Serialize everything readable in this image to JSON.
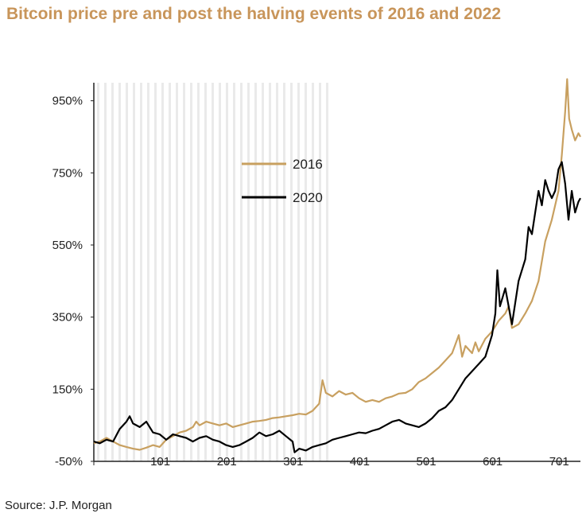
{
  "title": "Bitcoin price pre and post the halving events of 2016 and 2022",
  "source": "Source: J.P. Morgan",
  "colors": {
    "title": "#c8955a",
    "series_2016": "#c8a060",
    "series_2020": "#000000",
    "shading": "#d9d9d9"
  },
  "chart_data": {
    "type": "line",
    "title": "Bitcoin price pre and post the halving events of 2016 and 2022",
    "xlabel": "",
    "ylabel": "",
    "xlim": [
      1,
      733
    ],
    "ylim": [
      -50,
      1000
    ],
    "x_ticks": [
      1,
      101,
      201,
      301,
      401,
      501,
      601,
      701
    ],
    "x_tick_labels": [
      "",
      "101",
      "201",
      "301",
      "401",
      "501",
      "601",
      "701"
    ],
    "y_ticks": [
      -50,
      150,
      350,
      550,
      750,
      950
    ],
    "y_tick_labels": [
      "-50%",
      "150%",
      "350%",
      "550%",
      "750%",
      "950%"
    ],
    "shaded_region": [
      1,
      360
    ],
    "grid": false,
    "legend_position": "upper-center",
    "series": [
      {
        "name": "2016",
        "color": "#c8a060",
        "points": [
          [
            1,
            0
          ],
          [
            10,
            5
          ],
          [
            20,
            15
          ],
          [
            30,
            5
          ],
          [
            40,
            -5
          ],
          [
            50,
            -10
          ],
          [
            60,
            -15
          ],
          [
            70,
            -18
          ],
          [
            80,
            -12
          ],
          [
            90,
            -5
          ],
          [
            100,
            -10
          ],
          [
            110,
            10
          ],
          [
            120,
            20
          ],
          [
            130,
            30
          ],
          [
            140,
            35
          ],
          [
            150,
            45
          ],
          [
            155,
            60
          ],
          [
            160,
            50
          ],
          [
            170,
            60
          ],
          [
            180,
            55
          ],
          [
            190,
            50
          ],
          [
            200,
            55
          ],
          [
            210,
            45
          ],
          [
            220,
            50
          ],
          [
            230,
            55
          ],
          [
            240,
            60
          ],
          [
            250,
            62
          ],
          [
            260,
            65
          ],
          [
            270,
            70
          ],
          [
            280,
            72
          ],
          [
            290,
            75
          ],
          [
            300,
            78
          ],
          [
            310,
            82
          ],
          [
            320,
            80
          ],
          [
            330,
            90
          ],
          [
            340,
            110
          ],
          [
            345,
            175
          ],
          [
            350,
            140
          ],
          [
            360,
            130
          ],
          [
            370,
            145
          ],
          [
            380,
            135
          ],
          [
            390,
            140
          ],
          [
            400,
            125
          ],
          [
            410,
            115
          ],
          [
            420,
            120
          ],
          [
            430,
            115
          ],
          [
            440,
            125
          ],
          [
            450,
            130
          ],
          [
            460,
            138
          ],
          [
            470,
            140
          ],
          [
            480,
            150
          ],
          [
            490,
            170
          ],
          [
            500,
            180
          ],
          [
            510,
            195
          ],
          [
            520,
            210
          ],
          [
            530,
            230
          ],
          [
            540,
            250
          ],
          [
            545,
            275
          ],
          [
            550,
            300
          ],
          [
            555,
            240
          ],
          [
            560,
            270
          ],
          [
            570,
            250
          ],
          [
            575,
            280
          ],
          [
            580,
            255
          ],
          [
            590,
            290
          ],
          [
            600,
            310
          ],
          [
            610,
            340
          ],
          [
            620,
            360
          ],
          [
            625,
            380
          ],
          [
            630,
            320
          ],
          [
            640,
            330
          ],
          [
            650,
            360
          ],
          [
            660,
            395
          ],
          [
            670,
            450
          ],
          [
            680,
            560
          ],
          [
            690,
            620
          ],
          [
            700,
            700
          ],
          [
            705,
            800
          ],
          [
            710,
            920
          ],
          [
            713,
            1010
          ],
          [
            716,
            900
          ],
          [
            720,
            870
          ],
          [
            725,
            840
          ],
          [
            730,
            860
          ],
          [
            733,
            850
          ]
        ]
      },
      {
        "name": "2020",
        "color": "#000000",
        "points": [
          [
            1,
            5
          ],
          [
            10,
            0
          ],
          [
            20,
            10
          ],
          [
            30,
            5
          ],
          [
            40,
            40
          ],
          [
            50,
            60
          ],
          [
            55,
            75
          ],
          [
            60,
            55
          ],
          [
            70,
            45
          ],
          [
            80,
            60
          ],
          [
            90,
            30
          ],
          [
            100,
            25
          ],
          [
            110,
            10
          ],
          [
            120,
            25
          ],
          [
            130,
            20
          ],
          [
            140,
            15
          ],
          [
            150,
            5
          ],
          [
            160,
            15
          ],
          [
            170,
            20
          ],
          [
            180,
            10
          ],
          [
            190,
            5
          ],
          [
            200,
            -5
          ],
          [
            210,
            -10
          ],
          [
            220,
            -5
          ],
          [
            230,
            5
          ],
          [
            240,
            15
          ],
          [
            250,
            30
          ],
          [
            260,
            20
          ],
          [
            270,
            25
          ],
          [
            280,
            35
          ],
          [
            290,
            20
          ],
          [
            300,
            5
          ],
          [
            303,
            -25
          ],
          [
            310,
            -15
          ],
          [
            320,
            -20
          ],
          [
            330,
            -10
          ],
          [
            340,
            -5
          ],
          [
            350,
            0
          ],
          [
            360,
            10
          ],
          [
            370,
            15
          ],
          [
            380,
            20
          ],
          [
            390,
            25
          ],
          [
            400,
            30
          ],
          [
            410,
            28
          ],
          [
            420,
            35
          ],
          [
            430,
            40
          ],
          [
            440,
            50
          ],
          [
            450,
            60
          ],
          [
            460,
            65
          ],
          [
            470,
            55
          ],
          [
            480,
            50
          ],
          [
            490,
            45
          ],
          [
            500,
            55
          ],
          [
            510,
            70
          ],
          [
            520,
            90
          ],
          [
            530,
            100
          ],
          [
            540,
            120
          ],
          [
            550,
            150
          ],
          [
            560,
            180
          ],
          [
            570,
            200
          ],
          [
            580,
            220
          ],
          [
            590,
            240
          ],
          [
            600,
            300
          ],
          [
            605,
            360
          ],
          [
            608,
            480
          ],
          [
            612,
            380
          ],
          [
            620,
            430
          ],
          [
            630,
            330
          ],
          [
            640,
            450
          ],
          [
            650,
            510
          ],
          [
            655,
            600
          ],
          [
            660,
            580
          ],
          [
            665,
            640
          ],
          [
            670,
            700
          ],
          [
            675,
            660
          ],
          [
            680,
            730
          ],
          [
            685,
            700
          ],
          [
            690,
            680
          ],
          [
            695,
            700
          ],
          [
            700,
            760
          ],
          [
            705,
            780
          ],
          [
            710,
            720
          ],
          [
            715,
            620
          ],
          [
            720,
            700
          ],
          [
            725,
            640
          ],
          [
            730,
            670
          ],
          [
            733,
            680
          ]
        ]
      }
    ]
  }
}
